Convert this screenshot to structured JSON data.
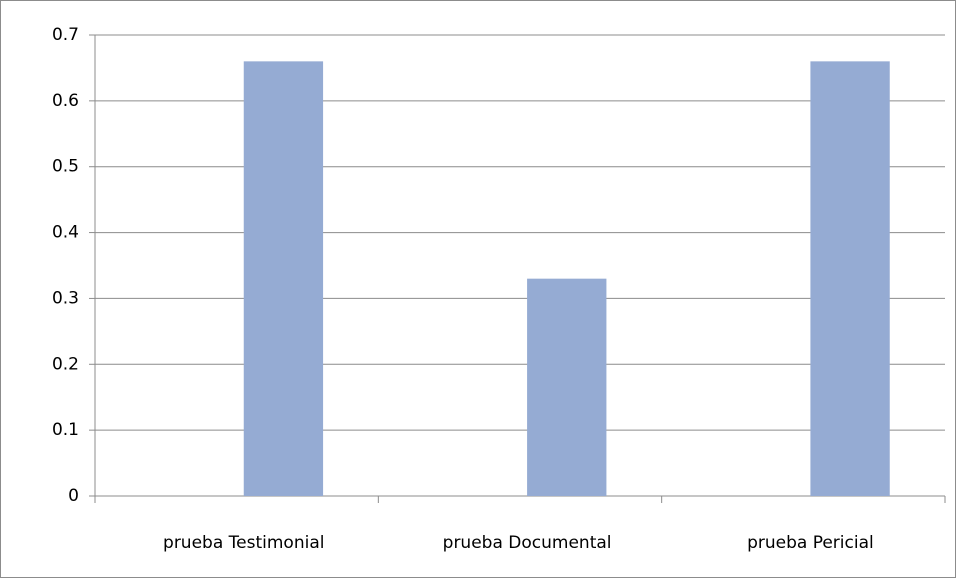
{
  "chart_data": {
    "type": "bar",
    "categories": [
      "prueba Testimonial",
      "prueba Documental",
      "prueba Pericial"
    ],
    "values": [
      0.66,
      0.33,
      0.66
    ],
    "color": "#95abd3",
    "ylim": [
      0,
      0.7
    ],
    "yticks": [
      0,
      0.1,
      0.2,
      0.3,
      0.4,
      0.5,
      0.6,
      0.7
    ],
    "grid": true
  }
}
